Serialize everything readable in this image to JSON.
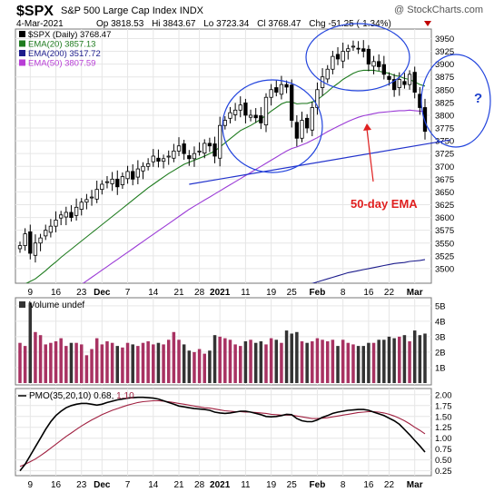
{
  "header": {
    "symbol": "$SPX",
    "name": "S&P 500 Large Cap Index",
    "exchange": "INDX",
    "date": "4-Mar-2021",
    "quote": {
      "op_label": "Op",
      "op": "3818.53",
      "hi_label": "Hi",
      "hi": "3843.67",
      "lo_label": "Lo",
      "lo": "3723.34",
      "cl_label": "Cl",
      "cl": "3768.47",
      "chg_label": "Chg",
      "chg": "-51.25 (-1.34%)"
    },
    "credit": "@ StockCharts.com"
  },
  "legend_price": [
    {
      "label": "$SPX (Daily) 3768.47",
      "color": "#000000"
    },
    {
      "label": "EMA(20) 3857.13",
      "color": "#1e7b1e"
    },
    {
      "label": "EMA(200) 3517.72",
      "color": "#1c1c8c"
    },
    {
      "label": "EMA(50) 3807.59",
      "color": "#b83dd6"
    }
  ],
  "legend_volume": "Volume undef",
  "legend_pmo": {
    "prefix": "PMO(35,20,10) 0.68,",
    "signal": "1.10"
  },
  "annotations": {
    "ema_label": "50-day EMA",
    "question": "?"
  },
  "colors": {
    "up": "#2b2b2b",
    "down": "#000000",
    "vol_up": "#a83262",
    "vol_down": "#333333",
    "ema20": "#1e7b1e",
    "ema50": "#9b3bd6",
    "ema200": "#1c1c8c",
    "trend": "#2233cc",
    "circle": "#2244dd",
    "arrow": "#e02020",
    "pmo": "#000000",
    "pmo_signal": "#a02040"
  },
  "chart_data": [
    {
      "type": "candlestick",
      "title": "$SPX S&P 500 Large Cap Index INDX",
      "ylim": [
        3475,
        3965
      ],
      "yticks": [
        3500,
        3525,
        3550,
        3575,
        3600,
        3625,
        3650,
        3675,
        3700,
        3725,
        3750,
        3775,
        3800,
        3825,
        3850,
        3875,
        3900,
        3925,
        3950
      ],
      "xticks": [
        {
          "label": "9",
          "i": 2
        },
        {
          "label": "16",
          "i": 7
        },
        {
          "label": "23",
          "i": 12
        },
        {
          "label": "Dec",
          "i": 16
        },
        {
          "label": "7",
          "i": 21
        },
        {
          "label": "14",
          "i": 26
        },
        {
          "label": "21",
          "i": 31
        },
        {
          "label": "28",
          "i": 35
        },
        {
          "label": "2021",
          "i": 39
        },
        {
          "label": "11",
          "i": 44
        },
        {
          "label": "19",
          "i": 49
        },
        {
          "label": "25",
          "i": 53
        },
        {
          "label": "Feb",
          "i": 58
        },
        {
          "label": "8",
          "i": 63
        },
        {
          "label": "16",
          "i": 68
        },
        {
          "label": "22",
          "i": 72
        },
        {
          "label": "Mar",
          "i": 77
        }
      ],
      "close": [
        3545,
        3568,
        3530,
        3550,
        3560,
        3575,
        3583,
        3595,
        3605,
        3610,
        3600,
        3620,
        3630,
        3635,
        3640,
        3655,
        3665,
        3670,
        3675,
        3660,
        3680,
        3690,
        3675,
        3695,
        3700,
        3705,
        3720,
        3710,
        3715,
        3720,
        3730,
        3740,
        3725,
        3715,
        3725,
        3730,
        3745,
        3740,
        3720,
        3780,
        3790,
        3805,
        3810,
        3820,
        3800,
        3800,
        3795,
        3785,
        3835,
        3850,
        3845,
        3860,
        3855,
        3790,
        3755,
        3790,
        3775,
        3815,
        3850,
        3875,
        3890,
        3915,
        3910,
        3925,
        3930,
        3935,
        3930,
        3925,
        3900,
        3905,
        3895,
        3880,
        3870,
        3850,
        3870,
        3860,
        3880,
        3845,
        3815,
        3768.47
      ],
      "ema20": [
        3460,
        3470,
        3475,
        3480,
        3488,
        3496,
        3505,
        3513,
        3522,
        3530,
        3538,
        3546,
        3554,
        3562,
        3570,
        3578,
        3586,
        3594,
        3602,
        3610,
        3618,
        3626,
        3634,
        3642,
        3650,
        3658,
        3665,
        3672,
        3679,
        3686,
        3692,
        3698,
        3704,
        3708,
        3712,
        3716,
        3720,
        3725,
        3730,
        3738,
        3746,
        3754,
        3762,
        3770,
        3775,
        3780,
        3786,
        3792,
        3800,
        3808,
        3815,
        3822,
        3826,
        3826,
        3822,
        3823,
        3823,
        3826,
        3830,
        3838,
        3846,
        3855,
        3862,
        3870,
        3876,
        3882,
        3886,
        3888,
        3888,
        3888,
        3886,
        3884,
        3882,
        3878,
        3876,
        3872,
        3870,
        3865,
        3860,
        3857.13
      ],
      "ema50": [
        3390,
        3396,
        3402,
        3408,
        3414,
        3420,
        3427,
        3434,
        3441,
        3448,
        3455,
        3462,
        3469,
        3476,
        3483,
        3490,
        3497,
        3504,
        3511,
        3518,
        3525,
        3532,
        3539,
        3546,
        3553,
        3560,
        3567,
        3574,
        3581,
        3588,
        3595,
        3602,
        3609,
        3616,
        3622,
        3628,
        3634,
        3640,
        3646,
        3652,
        3658,
        3664,
        3670,
        3676,
        3682,
        3688,
        3694,
        3700,
        3706,
        3712,
        3718,
        3724,
        3730,
        3735,
        3738,
        3742,
        3746,
        3751,
        3756,
        3762,
        3768,
        3773,
        3778,
        3783,
        3788,
        3792,
        3796,
        3799,
        3801,
        3803,
        3805,
        3806,
        3807,
        3808,
        3809,
        3809,
        3810,
        3809,
        3808,
        3807.59
      ],
      "ema200": [
        3300,
        3303,
        3306,
        3309,
        3312,
        3315,
        3318,
        3321,
        3324,
        3327,
        3330,
        3333,
        3336,
        3339,
        3342,
        3345,
        3348,
        3351,
        3354,
        3357,
        3360,
        3363,
        3366,
        3369,
        3372,
        3375,
        3378,
        3381,
        3384,
        3387,
        3390,
        3393,
        3396,
        3399,
        3402,
        3405,
        3408,
        3411,
        3414,
        3417,
        3420,
        3423,
        3426,
        3429,
        3432,
        3435,
        3438,
        3441,
        3444,
        3447,
        3450,
        3453,
        3456,
        3459,
        3462,
        3465,
        3468,
        3471,
        3474,
        3477,
        3480,
        3483,
        3486,
        3489,
        3492,
        3494,
        3496,
        3498,
        3500,
        3502,
        3504,
        3506,
        3508,
        3510,
        3511,
        3512,
        3514,
        3515,
        3516,
        3517.72
      ],
      "trendline": [
        [
          33,
          3665
        ],
        [
          80,
          3745
        ]
      ]
    },
    {
      "type": "bar",
      "title": "Volume undef",
      "ylim": [
        0,
        5.4
      ],
      "yticks": [
        "1B",
        "2B",
        "3B",
        "4B",
        "5B"
      ],
      "values": [
        2.6,
        2.4,
        5.2,
        3.3,
        3.1,
        2.5,
        2.6,
        2.7,
        2.9,
        2.4,
        2.6,
        2.6,
        2.5,
        1.8,
        2.2,
        2.9,
        2.5,
        2.7,
        2.6,
        2.4,
        2.3,
        2.6,
        2.5,
        2.4,
        2.6,
        2.7,
        2.5,
        2.6,
        2.5,
        2.8,
        3.3,
        2.8,
        2.5,
        2.1,
        2.0,
        2.2,
        1.9,
        2.1,
        3.1,
        3.0,
        2.9,
        2.8,
        2.5,
        2.4,
        2.7,
        2.8,
        2.6,
        2.7,
        2.5,
        2.9,
        2.8,
        2.6,
        3.4,
        3.2,
        3.3,
        2.7,
        2.6,
        2.7,
        2.9,
        2.8,
        2.7,
        2.8,
        2.4,
        2.8,
        2.6,
        2.5,
        2.4,
        2.4,
        2.6,
        2.6,
        2.8,
        2.8,
        3.0,
        2.9,
        3.0,
        3.1,
        2.7,
        3.4,
        3.1,
        3.2
      ]
    },
    {
      "type": "line",
      "title": "PMO(35,20,10)",
      "ylim": [
        0.18,
        2.1
      ],
      "yticks": [
        "0.25",
        "0.50",
        "0.75",
        "1.00",
        "1.25",
        "1.50",
        "1.75",
        "2.00"
      ],
      "pmo": [
        0.25,
        0.4,
        0.6,
        0.8,
        1.0,
        1.2,
        1.38,
        1.52,
        1.62,
        1.7,
        1.75,
        1.78,
        1.8,
        1.8,
        1.78,
        1.76,
        1.78,
        1.82,
        1.85,
        1.88,
        1.9,
        1.92,
        1.93,
        1.94,
        1.94,
        1.93,
        1.92,
        1.9,
        1.86,
        1.82,
        1.78,
        1.74,
        1.72,
        1.7,
        1.68,
        1.67,
        1.66,
        1.64,
        1.6,
        1.58,
        1.57,
        1.58,
        1.6,
        1.62,
        1.62,
        1.6,
        1.57,
        1.54,
        1.5,
        1.49,
        1.5,
        1.52,
        1.55,
        1.54,
        1.45,
        1.4,
        1.38,
        1.38,
        1.42,
        1.48,
        1.52,
        1.57,
        1.6,
        1.62,
        1.64,
        1.65,
        1.66,
        1.66,
        1.64,
        1.6,
        1.56,
        1.52,
        1.46,
        1.4,
        1.32,
        1.2,
        1.08,
        0.95,
        0.82,
        0.68
      ],
      "signal": [
        0.35,
        0.4,
        0.46,
        0.52,
        0.6,
        0.68,
        0.77,
        0.86,
        0.95,
        1.04,
        1.12,
        1.2,
        1.28,
        1.35,
        1.42,
        1.48,
        1.54,
        1.59,
        1.64,
        1.68,
        1.72,
        1.76,
        1.79,
        1.82,
        1.84,
        1.85,
        1.86,
        1.86,
        1.85,
        1.84,
        1.82,
        1.8,
        1.78,
        1.76,
        1.74,
        1.72,
        1.7,
        1.69,
        1.67,
        1.65,
        1.63,
        1.62,
        1.61,
        1.61,
        1.6,
        1.6,
        1.59,
        1.58,
        1.57,
        1.55,
        1.54,
        1.53,
        1.53,
        1.53,
        1.51,
        1.49,
        1.47,
        1.45,
        1.45,
        1.46,
        1.47,
        1.49,
        1.51,
        1.53,
        1.55,
        1.57,
        1.59,
        1.6,
        1.61,
        1.61,
        1.6,
        1.58,
        1.55,
        1.51,
        1.46,
        1.4,
        1.33,
        1.25,
        1.18,
        1.1
      ]
    }
  ]
}
